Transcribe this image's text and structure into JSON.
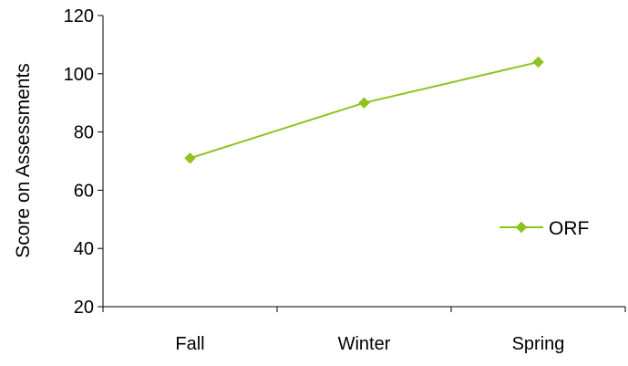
{
  "chart_data": {
    "type": "line",
    "categories": [
      "Fall",
      "Winter",
      "Spring"
    ],
    "series": [
      {
        "name": "ORF",
        "values": [
          71,
          90,
          104
        ],
        "color": "#8dc21f",
        "marker": "diamond"
      }
    ],
    "ylabel": "Score on Assessments",
    "xlabel": "",
    "ylim": [
      20,
      120
    ],
    "yticks": [
      20,
      40,
      60,
      80,
      100,
      120
    ],
    "grid": false,
    "legend": "right"
  }
}
